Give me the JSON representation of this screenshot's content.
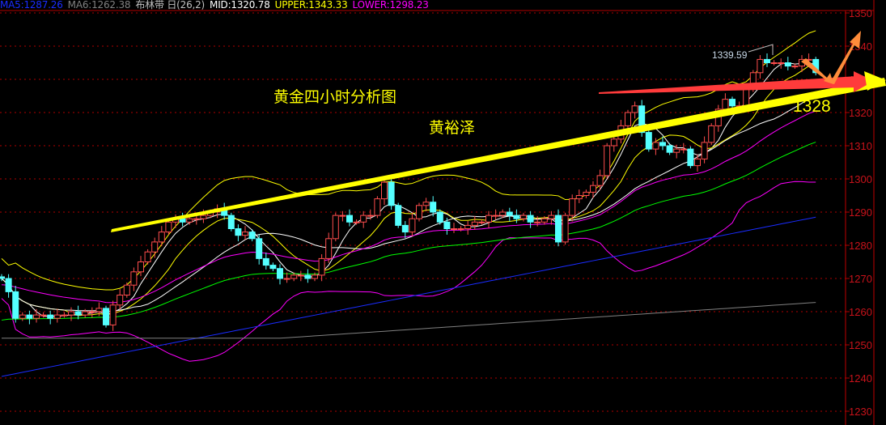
{
  "legend": {
    "ma5": "MA5:1287.26",
    "ma6": "MA6:1262.38",
    "indicator": "布林带 日(26,2)",
    "mid": "MID:1320.78",
    "upper": "UPPER:1343.33",
    "lower": "LOWER:1298.23"
  },
  "colors": {
    "ma5": "#1a2cff",
    "ma6": "#808080",
    "mid": "#ffffff",
    "upper": "#ffff00",
    "lower": "#ff00ff",
    "up_candle": "#ff4d4d",
    "down_candle": "#54ffff",
    "grid": "#b00000",
    "trend_yellow": "#ffff00",
    "trend_red": "#ff3b3b",
    "arrow_orange": "#ff8c3a"
  },
  "annotations": {
    "title": "黄金四小时分析图",
    "author": "黄裕泽",
    "target_price": "1328",
    "high_label": "1339.59"
  },
  "chart_data": {
    "type": "candlestick",
    "title": "黄金四小时分析图",
    "ylim": [
      1230,
      1350
    ],
    "y_ticks": [
      "1350",
      "1340",
      "1330",
      "1320",
      "1310",
      "1300",
      "1290",
      "1280",
      "1270",
      "1260",
      "1250",
      "1240",
      "1230"
    ],
    "grid": true,
    "closes": [
      1270,
      1266,
      1258,
      1259,
      1258,
      1259,
      1259,
      1258,
      1259,
      1259,
      1260,
      1259,
      1260,
      1260,
      1261,
      1256,
      1262,
      1265,
      1268,
      1272,
      1275,
      1278,
      1281,
      1284,
      1287,
      1288,
      1287,
      1288,
      1288,
      1289,
      1290,
      1291,
      1289,
      1285,
      1283,
      1284,
      1282,
      1276,
      1274,
      1273,
      1270,
      1270,
      1271,
      1271,
      1270,
      1271,
      1276,
      1282,
      1289,
      1289,
      1287,
      1287,
      1289,
      1289,
      1294,
      1299,
      1292,
      1286,
      1284,
      1288,
      1292,
      1293,
      1290,
      1287,
      1285,
      1285,
      1285,
      1286,
      1287,
      1287,
      1289,
      1289,
      1290,
      1289,
      1288,
      1289,
      1287,
      1287,
      1288,
      1289,
      1281,
      1289,
      1294,
      1295,
      1296,
      1298,
      1301,
      1310,
      1312,
      1316,
      1320,
      1322,
      1314,
      1309,
      1311,
      1310,
      1308,
      1309,
      1309,
      1304,
      1306,
      1311,
      1316,
      1321,
      1324,
      1322,
      1322,
      1327,
      1332,
      1336,
      1335,
      1335,
      1335,
      1334,
      1334,
      1336,
      1336,
      1332
    ],
    "high_marked": 1339.59
  }
}
